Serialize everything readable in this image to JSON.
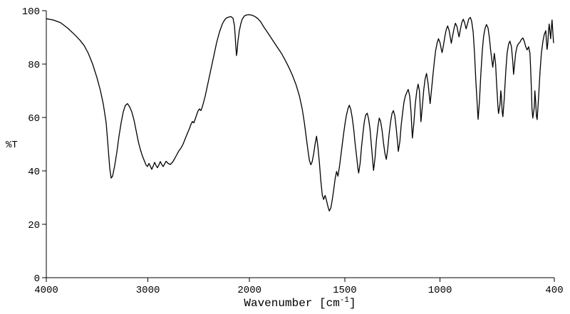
{
  "chart_data": {
    "type": "line",
    "title": "",
    "xlabel": "Wavenumber [cm-1]",
    "xlabel_main": "Wavenumber [cm",
    "xlabel_sup": "-1",
    "xlabel_end": "]",
    "ylabel": "%T",
    "line_color": "#000000",
    "background_color": "#ffffff",
    "grid": "off",
    "legend": "none",
    "x_axis": {
      "range": [
        4000,
        400
      ],
      "reversed": true,
      "ticks": [
        4000,
        3000,
        2000,
        1500,
        1000,
        400
      ],
      "break_at": 2000,
      "left_fraction": 0.4,
      "scale_note": "wavenumber axis compressed 2x above 2000 cm-1 (scale change at 2000)"
    },
    "y_axis": {
      "range": [
        0,
        100
      ],
      "ticks": [
        0,
        20,
        40,
        60,
        80,
        100
      ]
    },
    "series": [
      {
        "name": "%T",
        "points": [
          [
            4000,
            97
          ],
          [
            3930,
            96.5
          ],
          [
            3860,
            95.5
          ],
          [
            3790,
            93.5
          ],
          [
            3720,
            91
          ],
          [
            3670,
            89
          ],
          [
            3628,
            87
          ],
          [
            3586,
            84
          ],
          [
            3544,
            80
          ],
          [
            3502,
            75
          ],
          [
            3467,
            70
          ],
          [
            3439,
            65
          ],
          [
            3411,
            58
          ],
          [
            3390,
            48
          ],
          [
            3376,
            41
          ],
          [
            3362,
            37.3
          ],
          [
            3348,
            38
          ],
          [
            3327,
            42
          ],
          [
            3306,
            47
          ],
          [
            3285,
            53
          ],
          [
            3264,
            58
          ],
          [
            3243,
            62
          ],
          [
            3222,
            64.5
          ],
          [
            3201,
            65.2
          ],
          [
            3180,
            64
          ],
          [
            3158,
            62
          ],
          [
            3137,
            59
          ],
          [
            3116,
            55
          ],
          [
            3095,
            51
          ],
          [
            3074,
            48
          ],
          [
            3053,
            45.5
          ],
          [
            3032,
            43.5
          ],
          [
            3018,
            42.2
          ],
          [
            3004,
            41.6
          ],
          [
            2990,
            42.8
          ],
          [
            2976,
            41.8
          ],
          [
            2962,
            40.6
          ],
          [
            2948,
            41.8
          ],
          [
            2934,
            43.2
          ],
          [
            2920,
            42
          ],
          [
            2906,
            41.2
          ],
          [
            2892,
            42.2
          ],
          [
            2878,
            43.5
          ],
          [
            2864,
            42.4
          ],
          [
            2850,
            41.6
          ],
          [
            2836,
            42.6
          ],
          [
            2822,
            43.6
          ],
          [
            2801,
            42.8
          ],
          [
            2780,
            42.4
          ],
          [
            2759,
            43.2
          ],
          [
            2738,
            44.5
          ],
          [
            2717,
            46
          ],
          [
            2696,
            47.5
          ],
          [
            2675,
            48.5
          ],
          [
            2654,
            50
          ],
          [
            2633,
            52
          ],
          [
            2612,
            54
          ],
          [
            2590,
            56
          ],
          [
            2576,
            57.5
          ],
          [
            2562,
            58.5
          ],
          [
            2548,
            58
          ],
          [
            2534,
            59.5
          ],
          [
            2520,
            61
          ],
          [
            2506,
            62.5
          ],
          [
            2492,
            63.2
          ],
          [
            2478,
            62.6
          ],
          [
            2464,
            64
          ],
          [
            2450,
            66
          ],
          [
            2436,
            68
          ],
          [
            2422,
            70.5
          ],
          [
            2408,
            73
          ],
          [
            2394,
            75.5
          ],
          [
            2380,
            78
          ],
          [
            2366,
            80.5
          ],
          [
            2352,
            83
          ],
          [
            2338,
            85.5
          ],
          [
            2324,
            88
          ],
          [
            2310,
            90
          ],
          [
            2296,
            92
          ],
          [
            2282,
            93.5
          ],
          [
            2268,
            95
          ],
          [
            2254,
            96
          ],
          [
            2240,
            96.8
          ],
          [
            2226,
            97.3
          ],
          [
            2205,
            97.6
          ],
          [
            2184,
            97.8
          ],
          [
            2163,
            97.2
          ],
          [
            2149,
            94.5
          ],
          [
            2142,
            91
          ],
          [
            2135,
            87
          ],
          [
            2128,
            83.2
          ],
          [
            2121,
            85
          ],
          [
            2114,
            88.5
          ],
          [
            2100,
            92.5
          ],
          [
            2086,
            95
          ],
          [
            2072,
            96.8
          ],
          [
            2051,
            98
          ],
          [
            2030,
            98.4
          ],
          [
            2002,
            98.5
          ],
          [
            1986,
            98.3
          ],
          [
            1971,
            97.8
          ],
          [
            1956,
            97
          ],
          [
            1941,
            95.8
          ],
          [
            1926,
            94
          ],
          [
            1907,
            92
          ],
          [
            1888,
            90
          ],
          [
            1870,
            88
          ],
          [
            1851,
            86
          ],
          [
            1832,
            84
          ],
          [
            1813,
            81.5
          ],
          [
            1795,
            79
          ],
          [
            1776,
            76
          ],
          [
            1757,
            72.5
          ],
          [
            1738,
            68
          ],
          [
            1723,
            63
          ],
          [
            1712,
            58
          ],
          [
            1701,
            52
          ],
          [
            1693,
            47.5
          ],
          [
            1686,
            44
          ],
          [
            1678,
            42.3
          ],
          [
            1671,
            43.5
          ],
          [
            1663,
            46.5
          ],
          [
            1656,
            50
          ],
          [
            1648,
            53
          ],
          [
            1641,
            49
          ],
          [
            1633,
            43
          ],
          [
            1626,
            36.5
          ],
          [
            1618,
            31
          ],
          [
            1611,
            29.3
          ],
          [
            1603,
            30.8
          ],
          [
            1596,
            29
          ],
          [
            1588,
            26.5
          ],
          [
            1581,
            25
          ],
          [
            1573,
            26.2
          ],
          [
            1566,
            29
          ],
          [
            1558,
            33
          ],
          [
            1551,
            37
          ],
          [
            1543,
            39.8
          ],
          [
            1536,
            38
          ],
          [
            1528,
            41.5
          ],
          [
            1521,
            45.5
          ],
          [
            1513,
            50
          ],
          [
            1506,
            54
          ],
          [
            1498,
            58
          ],
          [
            1491,
            61
          ],
          [
            1483,
            63.3
          ],
          [
            1476,
            64.6
          ],
          [
            1468,
            63
          ],
          [
            1461,
            60
          ],
          [
            1453,
            55.5
          ],
          [
            1446,
            50.5
          ],
          [
            1438,
            45.5
          ],
          [
            1431,
            41
          ],
          [
            1427,
            39.2
          ],
          [
            1419,
            43
          ],
          [
            1412,
            49
          ],
          [
            1404,
            54.5
          ],
          [
            1397,
            58.5
          ],
          [
            1390,
            61
          ],
          [
            1382,
            61.6
          ],
          [
            1375,
            59.5
          ],
          [
            1367,
            55.5
          ],
          [
            1360,
            49.5
          ],
          [
            1352,
            42.5
          ],
          [
            1349,
            40.2
          ],
          [
            1341,
            45
          ],
          [
            1334,
            51.5
          ],
          [
            1326,
            56.5
          ],
          [
            1319,
            59.8
          ],
          [
            1312,
            58.5
          ],
          [
            1304,
            55
          ],
          [
            1297,
            50.5
          ],
          [
            1289,
            46.5
          ],
          [
            1282,
            44.3
          ],
          [
            1274,
            48.5
          ],
          [
            1267,
            54
          ],
          [
            1259,
            58.5
          ],
          [
            1252,
            61.5
          ],
          [
            1245,
            62.6
          ],
          [
            1237,
            60.5
          ],
          [
            1230,
            56
          ],
          [
            1222,
            50
          ],
          [
            1219,
            47.3
          ],
          [
            1211,
            51
          ],
          [
            1204,
            57
          ],
          [
            1196,
            62
          ],
          [
            1189,
            65.8
          ],
          [
            1182,
            68
          ],
          [
            1174,
            69.5
          ],
          [
            1167,
            70.5
          ],
          [
            1159,
            68
          ],
          [
            1152,
            62
          ],
          [
            1148,
            56
          ],
          [
            1145,
            52.3
          ],
          [
            1137,
            58
          ],
          [
            1130,
            65
          ],
          [
            1122,
            70
          ],
          [
            1115,
            72.5
          ],
          [
            1108,
            70
          ],
          [
            1104,
            64
          ],
          [
            1100,
            58.4
          ],
          [
            1093,
            64
          ],
          [
            1085,
            70.5
          ],
          [
            1078,
            74.5
          ],
          [
            1071,
            76.5
          ],
          [
            1063,
            73
          ],
          [
            1056,
            68
          ],
          [
            1052,
            65.2
          ],
          [
            1045,
            70
          ],
          [
            1037,
            76
          ],
          [
            1030,
            81
          ],
          [
            1023,
            85
          ],
          [
            1015,
            88
          ],
          [
            1008,
            89.5
          ],
          [
            1000,
            88
          ],
          [
            993,
            85.5
          ],
          [
            989,
            84.3
          ],
          [
            982,
            87
          ],
          [
            974,
            90.5
          ],
          [
            967,
            93
          ],
          [
            960,
            94.3
          ],
          [
            952,
            92.5
          ],
          [
            945,
            89.5
          ],
          [
            941,
            87.8
          ],
          [
            934,
            90.5
          ],
          [
            926,
            93.5
          ],
          [
            919,
            95.3
          ],
          [
            911,
            94
          ],
          [
            904,
            91.5
          ],
          [
            900,
            90.2
          ],
          [
            893,
            93
          ],
          [
            886,
            95.5
          ],
          [
            878,
            96.8
          ],
          [
            871,
            95.5
          ],
          [
            863,
            93.2
          ],
          [
            856,
            95
          ],
          [
            849,
            96.9
          ],
          [
            841,
            97.5
          ],
          [
            834,
            96
          ],
          [
            826,
            92
          ],
          [
            819,
            84
          ],
          [
            812,
            74
          ],
          [
            804,
            64
          ],
          [
            800,
            59.3
          ],
          [
            793,
            66
          ],
          [
            786,
            76
          ],
          [
            778,
            85
          ],
          [
            771,
            90.5
          ],
          [
            763,
            93.5
          ],
          [
            756,
            94.8
          ],
          [
            748,
            93.5
          ],
          [
            741,
            90
          ],
          [
            734,
            85
          ],
          [
            726,
            80.5
          ],
          [
            723,
            78.8
          ],
          [
            715,
            84
          ],
          [
            708,
            80
          ],
          [
            704,
            74
          ],
          [
            696,
            64
          ],
          [
            693,
            61.5
          ],
          [
            685,
            65
          ],
          [
            681,
            70
          ],
          [
            678,
            68
          ],
          [
            674,
            62.5
          ],
          [
            670,
            60.3
          ],
          [
            663,
            67
          ],
          [
            655,
            77
          ],
          [
            648,
            84
          ],
          [
            640,
            87.5
          ],
          [
            633,
            88.6
          ],
          [
            625,
            86.5
          ],
          [
            618,
            81
          ],
          [
            614,
            76.2
          ],
          [
            610,
            79
          ],
          [
            603,
            84
          ],
          [
            595,
            86.8
          ],
          [
            588,
            87.6
          ],
          [
            580,
            88.3
          ],
          [
            573,
            89.2
          ],
          [
            565,
            89.8
          ],
          [
            558,
            88.5
          ],
          [
            550,
            86.5
          ],
          [
            543,
            85.3
          ],
          [
            535,
            86.5
          ],
          [
            528,
            84
          ],
          [
            524,
            78
          ],
          [
            520,
            70
          ],
          [
            517,
            63
          ],
          [
            513,
            59.8
          ],
          [
            505,
            64
          ],
          [
            502,
            70
          ],
          [
            498,
            66
          ],
          [
            494,
            60.5
          ],
          [
            490,
            59.2
          ],
          [
            483,
            67
          ],
          [
            475,
            77
          ],
          [
            468,
            84
          ],
          [
            460,
            88.5
          ],
          [
            453,
            91
          ],
          [
            445,
            92.5
          ],
          [
            442,
            89
          ],
          [
            438,
            85.5
          ],
          [
            434,
            88
          ],
          [
            431,
            92
          ],
          [
            427,
            95
          ],
          [
            423,
            92
          ],
          [
            419,
            89.5
          ],
          [
            416,
            93
          ],
          [
            412,
            96.5
          ],
          [
            408,
            92
          ],
          [
            404,
            88
          ]
        ]
      }
    ]
  }
}
